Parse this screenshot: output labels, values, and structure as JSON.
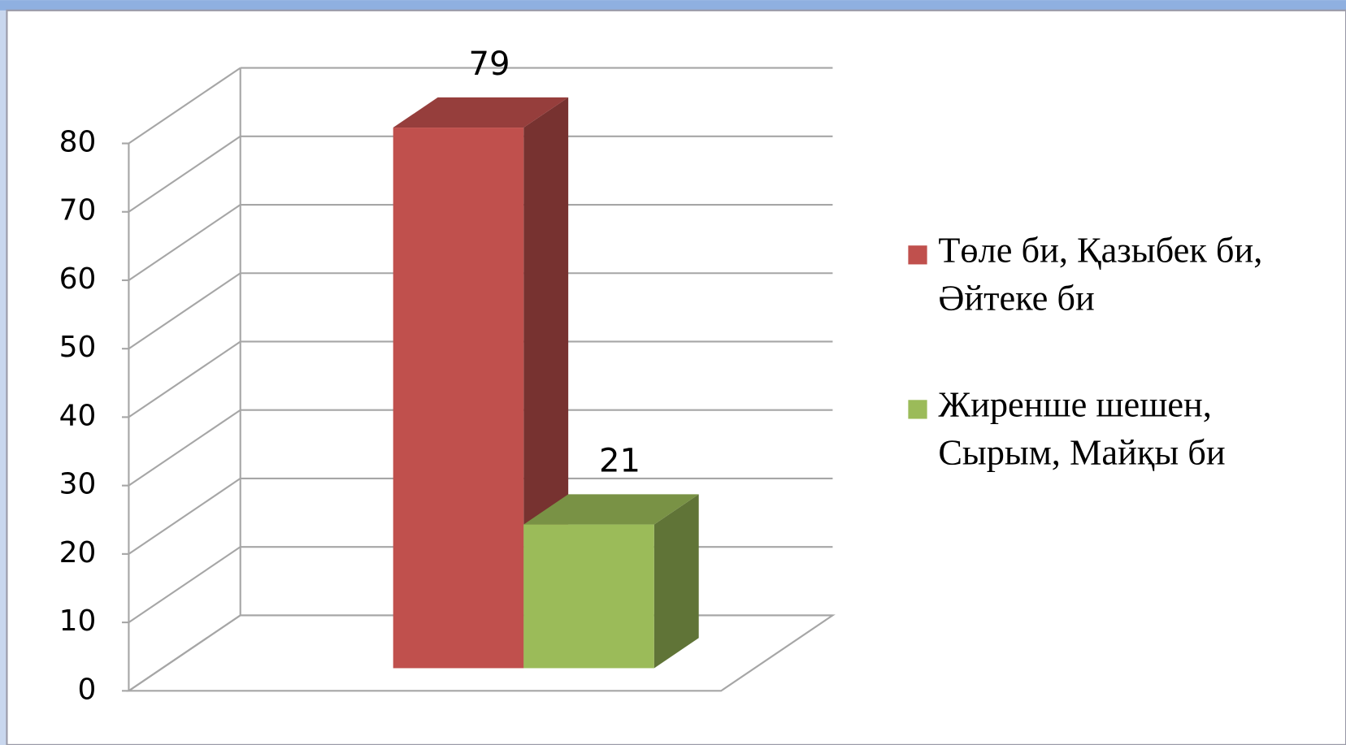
{
  "chart_data": {
    "type": "bar3d",
    "series": [
      {
        "name": "Төле би, Қазыбек би, Әйтеке би",
        "color": "#c0504d",
        "values": [
          79
        ]
      },
      {
        "name": "Жиренше шешен, Сырым, Майқы би",
        "color": "#9bbb59",
        "values": [
          21
        ]
      }
    ],
    "ylim": [
      0,
      80
    ],
    "yticks": [
      0,
      10,
      20,
      30,
      40,
      50,
      60,
      70,
      80
    ],
    "grid": true,
    "legend": "right",
    "data_labels": true
  }
}
